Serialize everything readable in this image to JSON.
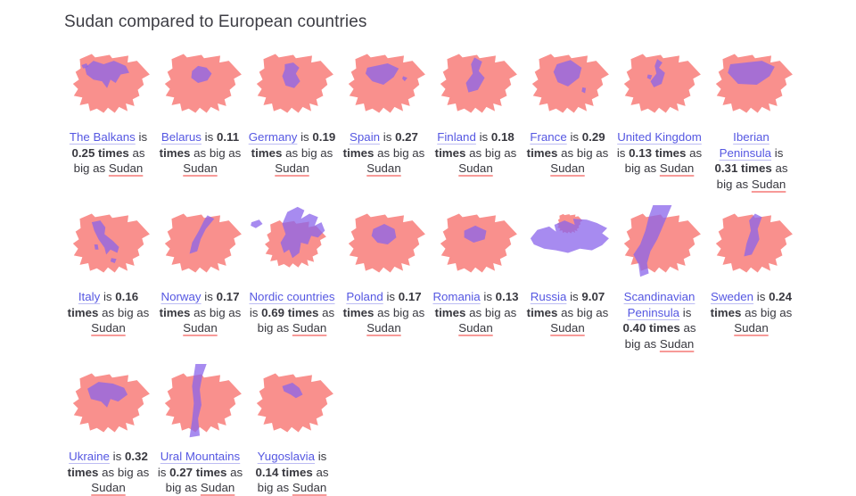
{
  "page": {
    "title": "Sudan compared to European countries"
  },
  "colors": {
    "sudan_fill": "#f9908d",
    "country_fill_rgba": "rgba(137,100,235,0.75)",
    "link": "#5557e2",
    "link_underline": "#bdbcf3",
    "text": "#38383f",
    "sudan_underline": "#f79a98",
    "background": "#ffffff"
  },
  "caption_words": {
    "is": "is",
    "times": "times",
    "as_big_as": "as big as",
    "sudan_label": "Sudan"
  },
  "grid": {
    "items": [
      {
        "key": "balkans",
        "name": "The Balkans",
        "ratio": "0.25"
      },
      {
        "key": "belarus",
        "name": "Belarus",
        "ratio": "0.11"
      },
      {
        "key": "germany",
        "name": "Germany",
        "ratio": "0.19"
      },
      {
        "key": "spain",
        "name": "Spain",
        "ratio": "0.27"
      },
      {
        "key": "finland",
        "name": "Finland",
        "ratio": "0.18"
      },
      {
        "key": "france",
        "name": "France",
        "ratio": "0.29"
      },
      {
        "key": "uk",
        "name": "United Kingdom",
        "ratio": "0.13"
      },
      {
        "key": "iberia",
        "name": "Iberian Peninsula",
        "ratio": "0.31"
      },
      {
        "key": "italy",
        "name": "Italy",
        "ratio": "0.16"
      },
      {
        "key": "norway",
        "name": "Norway",
        "ratio": "0.17"
      },
      {
        "key": "nordic",
        "name": "Nordic countries",
        "ratio": "0.69"
      },
      {
        "key": "poland",
        "name": "Poland",
        "ratio": "0.17"
      },
      {
        "key": "romania",
        "name": "Romania",
        "ratio": "0.13"
      },
      {
        "key": "russia",
        "name": "Russia",
        "ratio": "9.07"
      },
      {
        "key": "scandinavia",
        "name": "Scandinavian Peninsula",
        "ratio": "0.40"
      },
      {
        "key": "sweden",
        "name": "Sweden",
        "ratio": "0.24"
      },
      {
        "key": "ukraine",
        "name": "Ukraine",
        "ratio": "0.32"
      },
      {
        "key": "ural",
        "name": "Ural Mountains",
        "ratio": "0.27"
      },
      {
        "key": "yugoslavia",
        "name": "Yugoslavia",
        "ratio": "0.14"
      }
    ]
  }
}
